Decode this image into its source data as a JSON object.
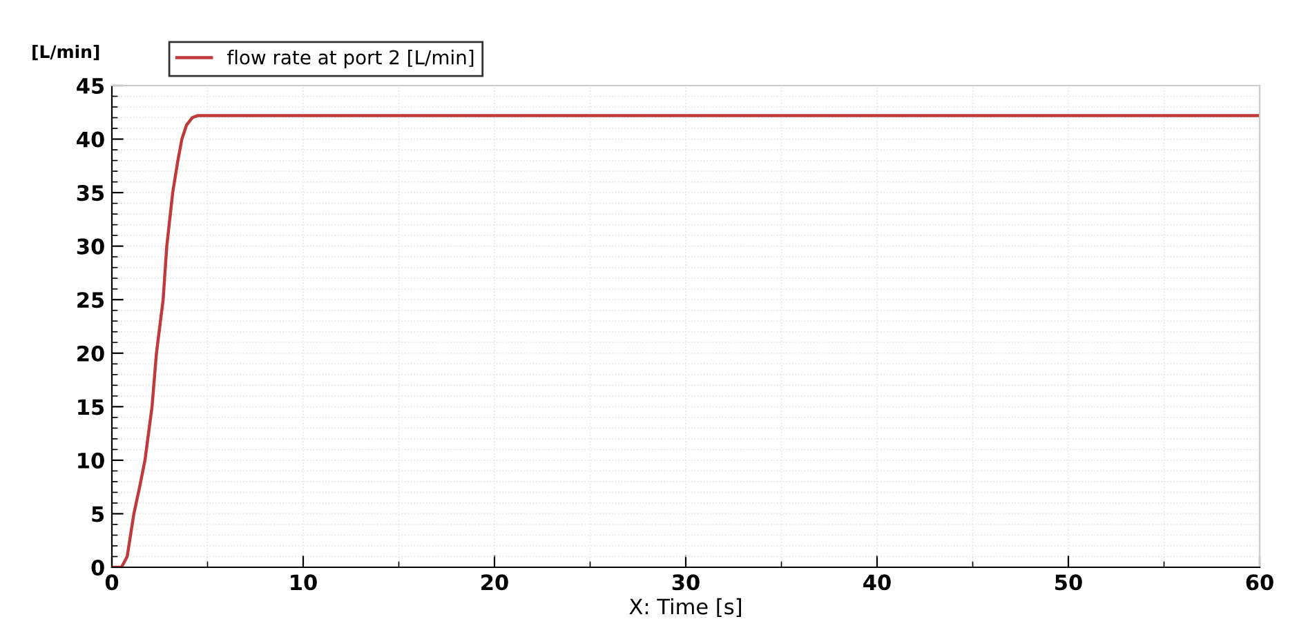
{
  "chart_data": {
    "type": "line",
    "xlabel": "X: Time [s]",
    "ylabel": "[L/min]",
    "series": [
      {
        "name": "flow rate at port 2 [L/min]",
        "color": "#c0393b",
        "x": [
          0,
          0.5,
          0.8,
          1.15,
          1.45,
          1.73,
          2.1,
          2.33,
          2.68,
          2.87,
          3.18,
          3.45,
          3.66,
          3.9,
          4.2,
          4.5,
          5,
          10,
          20,
          30,
          40,
          50,
          60
        ],
        "values": [
          0,
          0,
          1,
          5,
          7.5,
          10,
          15,
          20,
          25,
          30,
          35,
          38,
          40,
          41.3,
          42,
          42.2,
          42.2,
          42.2,
          42.2,
          42.2,
          42.2,
          42.2,
          42.2
        ]
      }
    ],
    "xlim": [
      0,
      60
    ],
    "xticks": [
      0,
      10,
      20,
      30,
      40,
      50,
      60
    ],
    "ylim": [
      0,
      45
    ],
    "yticks": [
      0,
      5,
      10,
      15,
      20,
      25,
      30,
      35,
      40,
      45
    ],
    "grid": true,
    "legend": "top left",
    "marker": "none",
    "line_style": "solid"
  }
}
